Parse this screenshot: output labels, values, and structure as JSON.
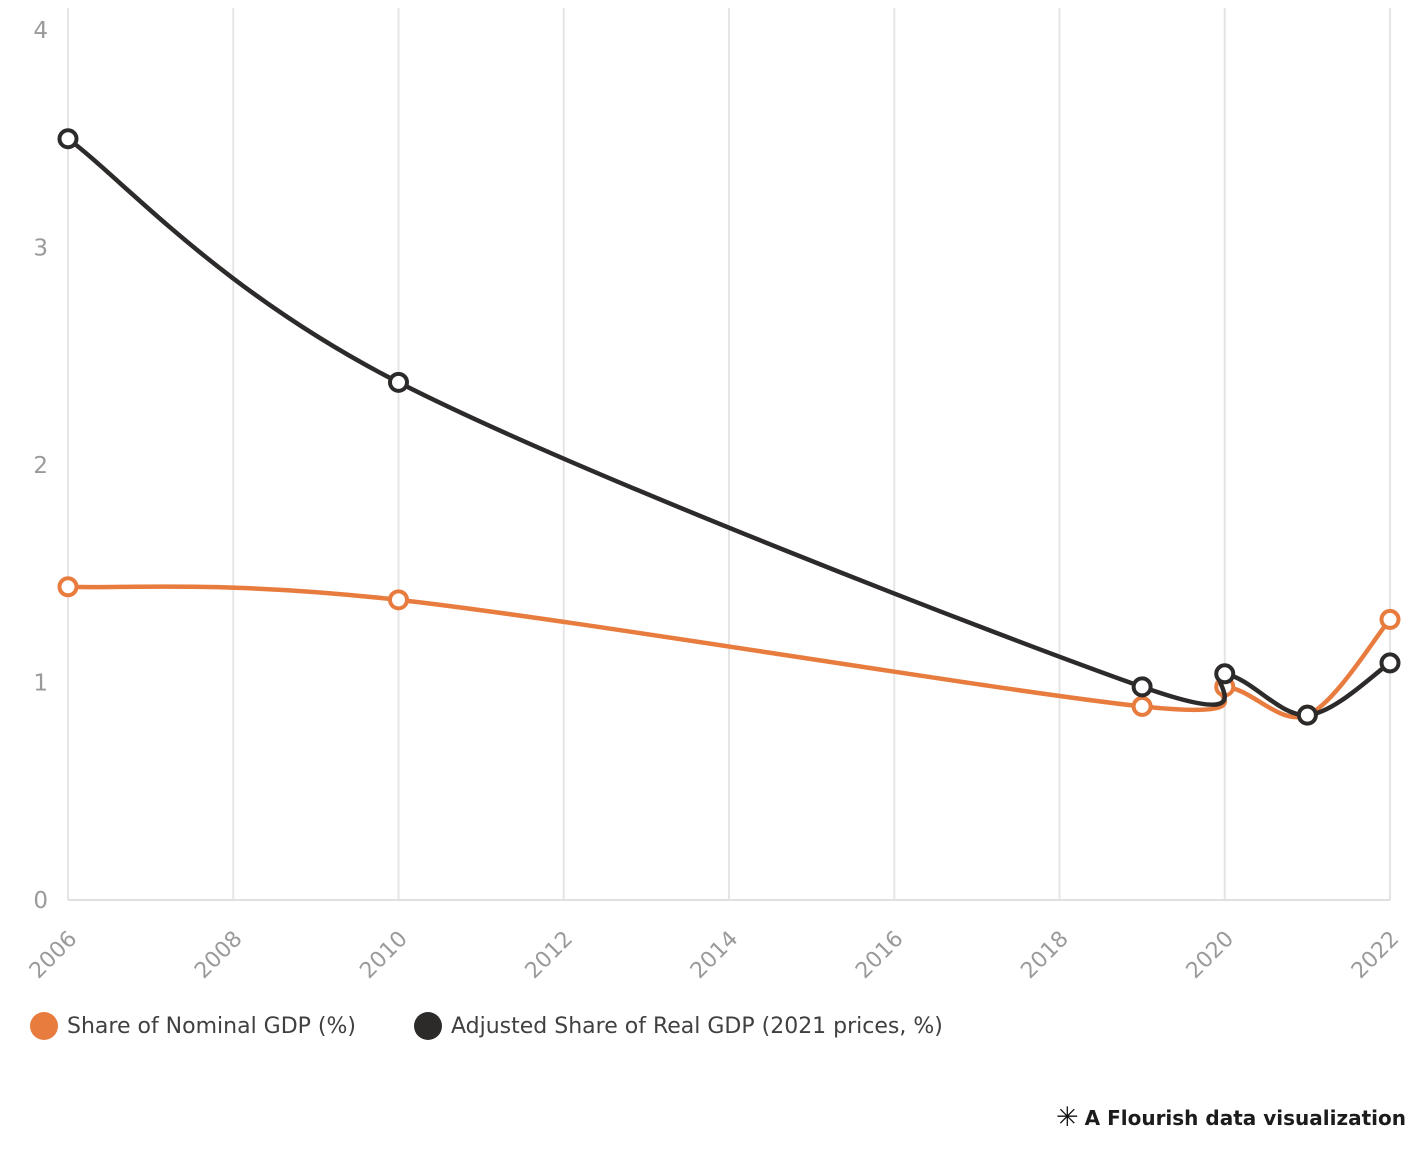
{
  "chart_data": {
    "type": "line",
    "x": [
      2006,
      2010,
      2019,
      2020,
      2021,
      2022
    ],
    "series": [
      {
        "name": "Share of Nominal GDP (%)",
        "color": "#e87c3e",
        "values": [
          1.44,
          1.38,
          0.89,
          0.98,
          0.85,
          1.29
        ]
      },
      {
        "name": "Adjusted Share of Real GDP (2021 prices, %)",
        "color": "#2d2a2a",
        "values": [
          3.5,
          2.38,
          0.98,
          1.04,
          0.85,
          1.09
        ]
      }
    ],
    "title": "",
    "xlabel": "",
    "ylabel": "",
    "xlim": [
      2006,
      2022
    ],
    "ylim": [
      0,
      4
    ],
    "x_ticks": [
      2006,
      2008,
      2010,
      2012,
      2014,
      2016,
      2018,
      2020,
      2022
    ],
    "y_ticks": [
      0,
      1,
      2,
      3,
      4
    ],
    "grid": "vertical",
    "curve": "smooth",
    "marker": "open-circle",
    "legend_position": "bottom-left"
  },
  "footer": {
    "logo_glyph": "✳",
    "attribution": "A Flourish data visualization"
  },
  "colors": {
    "background": "#ffffff",
    "grid": "#e5e5e5",
    "axis_line": "#e0e0e0",
    "axis_label": "#9a9a9a",
    "legend_text": "#404040",
    "marker_fill": "#ffffff"
  }
}
